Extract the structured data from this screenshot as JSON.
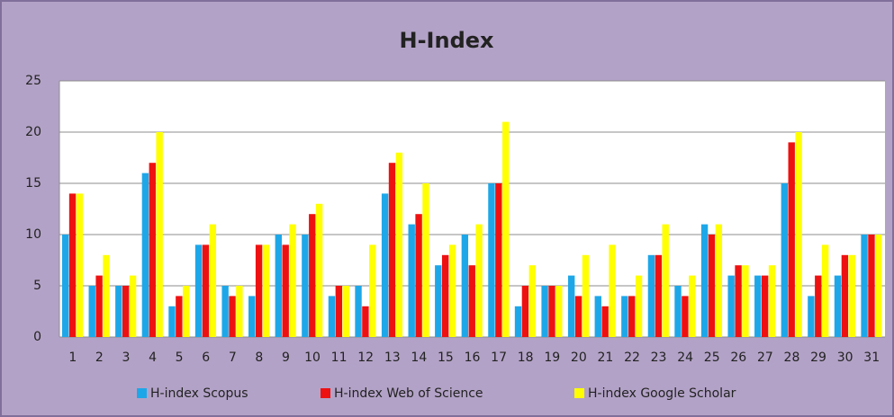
{
  "chart_data": {
    "type": "bar",
    "title": "H-Index",
    "categories": [
      "1",
      "2",
      "3",
      "4",
      "5",
      "6",
      "7",
      "8",
      "9",
      "10",
      "11",
      "12",
      "13",
      "14",
      "15",
      "16",
      "17",
      "18",
      "19",
      "20",
      "21",
      "22",
      "23",
      "24",
      "25",
      "26",
      "27",
      "28",
      "29",
      "30",
      "31"
    ],
    "series": [
      {
        "name": "H-index Scopus",
        "color": "#1ea7e8",
        "values": [
          10,
          5,
          5,
          16,
          3,
          9,
          5,
          4,
          10,
          10,
          4,
          5,
          14,
          11,
          7,
          10,
          15,
          3,
          5,
          6,
          4,
          4,
          8,
          5,
          11,
          6,
          6,
          15,
          4,
          6,
          10
        ]
      },
      {
        "name": "H-index Web of Science",
        "color": "#ee1111",
        "values": [
          14,
          6,
          5,
          17,
          4,
          9,
          4,
          9,
          9,
          12,
          5,
          3,
          17,
          12,
          8,
          7,
          15,
          5,
          5,
          4,
          3,
          4,
          8,
          4,
          10,
          7,
          6,
          19,
          6,
          8,
          10
        ]
      },
      {
        "name": "H-index Google Scholar",
        "color": "#ffff00",
        "values": [
          14,
          8,
          6,
          20,
          5,
          11,
          5,
          9,
          11,
          13,
          5,
          9,
          18,
          15,
          9,
          11,
          21,
          7,
          5,
          8,
          9,
          6,
          11,
          6,
          11,
          7,
          7,
          20,
          9,
          8,
          10
        ]
      }
    ],
    "ylim": [
      0,
      25
    ],
    "yticks": [
      0,
      5,
      10,
      15,
      20,
      25
    ],
    "grid": true,
    "legend": "bottom"
  }
}
